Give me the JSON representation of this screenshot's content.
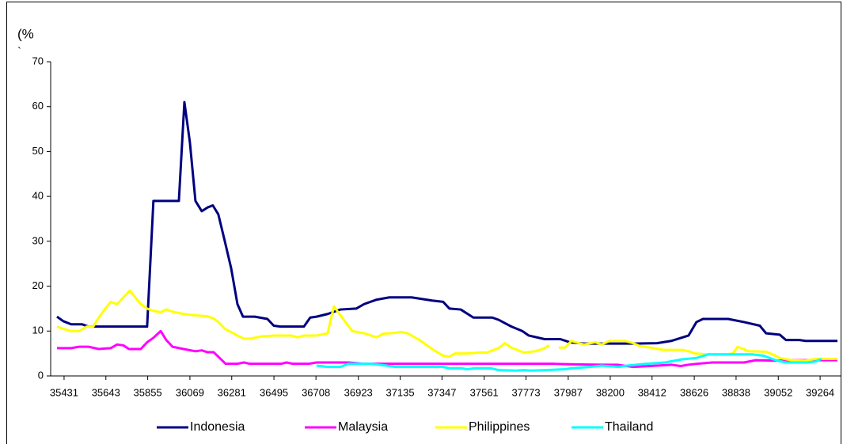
{
  "chart_data": {
    "type": "line",
    "y_label": "(%",
    "y_label_note": "`",
    "xlim": [
      35363,
      39368
    ],
    "xticks": [
      35431,
      35643,
      35855,
      36069,
      36281,
      36495,
      36708,
      36923,
      37135,
      37347,
      37561,
      37773,
      37987,
      38200,
      38412,
      38626,
      38838,
      39052,
      39264
    ],
    "ylim": [
      0,
      70
    ],
    "yticks": [
      0,
      10,
      20,
      30,
      40,
      50,
      60,
      70
    ],
    "legend": "bottom",
    "series": [
      {
        "name": "Indonesia",
        "color": "#000080",
        "x": [
          35395,
          35427,
          35467,
          35523,
          35555,
          35852,
          35884,
          36013,
          36041,
          36069,
          36097,
          36129,
          36157,
          36185,
          36213,
          36246,
          36278,
          36310,
          36338,
          36398,
          36462,
          36494,
          36527,
          36647,
          36679,
          36711,
          36767,
          36832,
          36912,
          36952,
          37016,
          37080,
          37193,
          37297,
          37353,
          37385,
          37442,
          37506,
          37602,
          37634,
          37699,
          37754,
          37787,
          37867,
          37947,
          37995,
          38067,
          38316,
          38437,
          38509,
          38597,
          38637,
          38670,
          38798,
          38878,
          38958,
          38990,
          39059,
          39091,
          39159,
          39191,
          39352
        ],
        "values": [
          13.2,
          12.2,
          11.5,
          11.5,
          11,
          11,
          39,
          39,
          61,
          52,
          39,
          36.7,
          37.5,
          38,
          36,
          30,
          24,
          16,
          13.2,
          13.2,
          12.7,
          11.2,
          11,
          11,
          13,
          13.2,
          13.8,
          14.8,
          15,
          16,
          17,
          17.5,
          17.5,
          16.8,
          16.5,
          15,
          14.8,
          13,
          13,
          12.5,
          11,
          10,
          9,
          8.2,
          8.2,
          7.5,
          7.2,
          7.2,
          7.3,
          7.8,
          9,
          12,
          12.7,
          12.7,
          12,
          11.2,
          9.5,
          9.2,
          8,
          8,
          7.8,
          7.8
        ]
      },
      {
        "name": "Malaysia",
        "color": "#ff00ff",
        "x": [
          35395,
          35467,
          35507,
          35555,
          35607,
          35668,
          35700,
          35732,
          35760,
          35820,
          35852,
          35884,
          35921,
          35949,
          35981,
          36037,
          36097,
          36129,
          36157,
          36189,
          36250,
          36310,
          36342,
          36374,
          36531,
          36559,
          36591,
          36671,
          36711,
          36872,
          36952,
          37915,
          37995,
          38156,
          38236,
          38316,
          38437,
          38509,
          38557,
          38597,
          38637,
          38718,
          38878,
          38938,
          39039,
          39119,
          39352
        ],
        "values": [
          6.2,
          6.2,
          6.5,
          6.5,
          6,
          6.2,
          7,
          6.8,
          6,
          6,
          7.5,
          8.5,
          10,
          8,
          6.5,
          6,
          5.5,
          5.7,
          5.3,
          5.3,
          2.7,
          2.7,
          3,
          2.7,
          2.7,
          3,
          2.7,
          2.7,
          3,
          3,
          2.7,
          2.7,
          2.6,
          2.5,
          2.5,
          2,
          2.3,
          2.5,
          2.2,
          2.5,
          2.7,
          3,
          3,
          3.5,
          3.4,
          3.5,
          3.5
        ]
      },
      {
        "name": "Philippines",
        "color": "#ffff00",
        "x": [
          35395,
          35427,
          35467,
          35507,
          35547,
          35579,
          35607,
          35640,
          35668,
          35700,
          35732,
          35764,
          35820,
          35852,
          35884,
          35921,
          35949,
          35981,
          36037,
          36097,
          36157,
          36189,
          36213,
          36246,
          36310,
          36342,
          36374,
          36430,
          36494,
          36583,
          36615,
          36647,
          36711,
          36767,
          36799,
          36832,
          36892,
          36952,
          37016,
          37048,
          37112,
          37140,
          37173,
          37233,
          37297,
          37353,
          37385,
          37413,
          37474,
          37534,
          37574,
          37634,
          37666,
          37699,
          37763,
          37819,
          37859,
          37891,
          37915,
          37939,
          37971,
          38003,
          38067,
          38124,
          38156,
          38196,
          38276,
          38316,
          38348,
          38405,
          38469,
          38565,
          38597,
          38629,
          38697,
          38790,
          38822,
          38846,
          38902,
          38990,
          39022,
          39059,
          39119,
          39191,
          39239,
          39352
        ],
        "values": [
          11,
          10.5,
          10,
          10,
          11,
          11,
          13,
          15,
          16.5,
          16,
          17.5,
          19,
          16,
          15,
          14.5,
          14.2,
          14.8,
          14.3,
          13.8,
          13.5,
          13.3,
          12.8,
          12,
          10.5,
          9,
          8.3,
          8.3,
          8.8,
          9,
          9,
          8.6,
          9,
          9,
          9.5,
          15.5,
          13.5,
          10,
          9.5,
          8.6,
          9.4,
          9.6,
          9.8,
          9.5,
          8,
          6,
          4.5,
          4.3,
          5,
          5,
          5.2,
          5.2,
          6.2,
          7.3,
          6.3,
          5.2,
          5.5,
          6,
          6.8,
          null,
          6.3,
          6.3,
          7.8,
          7,
          7.5,
          7,
          7.8,
          7.8,
          7.3,
          6.7,
          6.3,
          5.8,
          5.8,
          5.5,
          5,
          4.8,
          4.8,
          5,
          6.5,
          5.5,
          5.4,
          4.8,
          4,
          3.5,
          3.4,
          3.8,
          3.8
        ]
      },
      {
        "name": "Thailand",
        "color": "#00ffff",
        "x": [
          36711,
          36767,
          36832,
          36872,
          36992,
          37048,
          37112,
          37173,
          37353,
          37385,
          37446,
          37474,
          37514,
          37594,
          37634,
          37723,
          37763,
          37795,
          37875,
          37971,
          38003,
          38096,
          38156,
          38244,
          38284,
          38356,
          38477,
          38565,
          38637,
          38697,
          38918,
          38978,
          39039,
          39091,
          39199,
          39239,
          39271
        ],
        "values": [
          2.3,
          2,
          2,
          2.7,
          2.7,
          2.4,
          2,
          2,
          2,
          1.7,
          1.7,
          1.5,
          1.7,
          1.7,
          1.3,
          1.2,
          1.3,
          1.2,
          1.3,
          1.5,
          1.7,
          2,
          2.3,
          2,
          2.3,
          2.6,
          3,
          3.7,
          4,
          4.8,
          4.8,
          4.5,
          3.5,
          3,
          3,
          3.2,
          3.8
        ]
      }
    ]
  }
}
